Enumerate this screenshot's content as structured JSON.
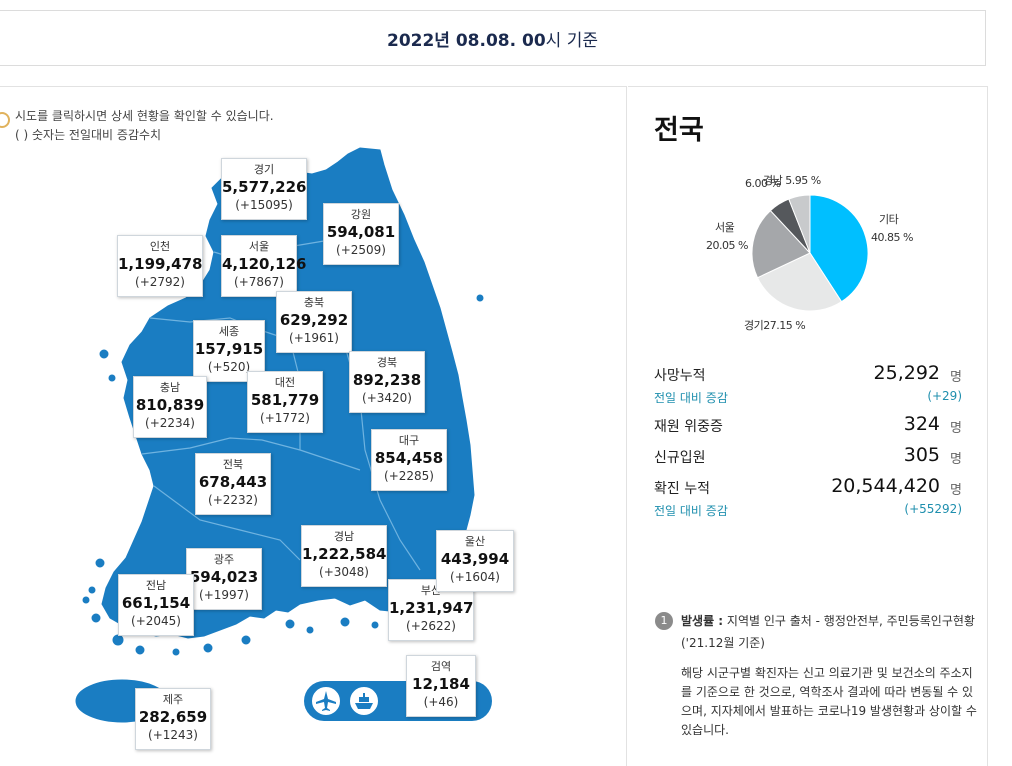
{
  "header": {
    "date": "2022년 08.08. 00",
    "suffix": "시 기준"
  },
  "notice": {
    "line1": "시도를 클릭하시면 상세 현황을 확인할 수 있습니다.",
    "line2": "( ) 숫자는 전일대비 증감수치"
  },
  "regions": {
    "gyeonggi": {
      "name": "경기",
      "value": "5,577,226",
      "diff": "(+15095)"
    },
    "gangwon": {
      "name": "강원",
      "value": "594,081",
      "diff": "(+2509)"
    },
    "incheon": {
      "name": "인천",
      "value": "1,199,478",
      "diff": "(+2792)"
    },
    "seoul": {
      "name": "서울",
      "value": "4,120,126",
      "diff": "(+7867)"
    },
    "chungbuk": {
      "name": "충북",
      "value": "629,292",
      "diff": "(+1961)"
    },
    "sejong": {
      "name": "세종",
      "value": "157,915",
      "diff": "(+520)"
    },
    "chungnam": {
      "name": "충남",
      "value": "810,839",
      "diff": "(+2234)"
    },
    "daejeon": {
      "name": "대전",
      "value": "581,779",
      "diff": "(+1772)"
    },
    "gyeongbuk": {
      "name": "경북",
      "value": "892,238",
      "diff": "(+3420)"
    },
    "daegu": {
      "name": "대구",
      "value": "854,458",
      "diff": "(+2285)"
    },
    "jeonbuk": {
      "name": "전북",
      "value": "678,443",
      "diff": "(+2232)"
    },
    "gyeongnam": {
      "name": "경남",
      "value": "1,222,584",
      "diff": "(+3048)"
    },
    "ulsan": {
      "name": "울산",
      "value": "443,994",
      "diff": "(+1604)"
    },
    "gwangju": {
      "name": "광주",
      "value": "594,023",
      "diff": "(+1997)"
    },
    "jeonnam": {
      "name": "전남",
      "value": "661,154",
      "diff": "(+2045)"
    },
    "busan": {
      "name": "부산",
      "value": "1,231,947",
      "diff": "(+2622)"
    },
    "jeju": {
      "name": "제주",
      "value": "282,659",
      "diff": "(+1243)"
    },
    "quarantine": {
      "name": "검역",
      "value": "12,184",
      "diff": "(+46)"
    }
  },
  "transport_icons": [
    "airplane-icon",
    "ship-icon"
  ],
  "summary": {
    "title": "전국",
    "chart_data": {
      "type": "pie",
      "slices": [
        {
          "label": "기타",
          "value": 40.85,
          "color": "#00bfff"
        },
        {
          "label": "경기",
          "value": 27.15,
          "color": "#e7e8e8"
        },
        {
          "label": "서울",
          "value": 20.05,
          "color": "#a5a7aa"
        },
        {
          "label": "6.00%",
          "value": 6.0,
          "color": "#55585c"
        },
        {
          "label": "경남",
          "value": 5.95,
          "color": "#c8cacc"
        }
      ],
      "labels": {
        "etc": "기타",
        "etc_pct": "40.85 %",
        "gyeonggi": "경기27.15 %",
        "seoul": "서울",
        "seoul_pct": "20.05 %",
        "six": "6.00 %",
        "gyeongnam": "경남 5.95 %"
      }
    },
    "stats": {
      "deaths": {
        "label": "사망누적",
        "value": "25,292",
        "unit": "명"
      },
      "deaths_diff": {
        "label": "전일 대비 증감",
        "value": "(+29)"
      },
      "critical": {
        "label": "재원 위중증",
        "value": "324",
        "unit": "명"
      },
      "imported": {
        "label": "신규입원",
        "value": "305",
        "unit": "명"
      },
      "confirmed": {
        "label": "확진 누적",
        "value": "20,544,420",
        "unit": "명"
      },
      "confirmed_diff": {
        "label": "전일 대비 증감",
        "value": "(+55292)"
      }
    },
    "footnote": {
      "num": "1",
      "title": "발생률 :",
      "source": " 지역별 인구 출처 - 행정안전부, 주민등록인구현황",
      "date": "('21.12월 기준)",
      "body": "해당 시군구별 확진자는 신고 의료기관 및 보건소의 주소지를 기준으로 한 것으로, 역학조사 결과에 따라 변동될 수 있으며, 지자체에서 발표하는 코로나19 발생현황과 상이할 수 있습니다."
    }
  },
  "colors": {
    "map": "#1a7dc2",
    "accent": "#00bfff",
    "teal": "#1f8fae"
  }
}
